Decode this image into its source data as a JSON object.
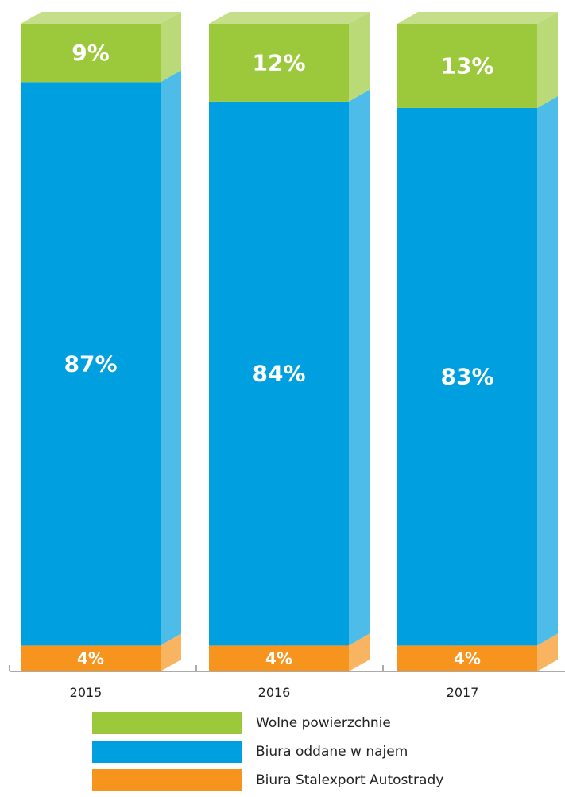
{
  "chart_data": {
    "type": "bar",
    "stacked": true,
    "style": "3d",
    "categories": [
      "2015",
      "2016",
      "2017"
    ],
    "series": [
      {
        "name": "Biura Stalexport Autostrady",
        "color": "#f7941d",
        "values": [
          4,
          4,
          4
        ],
        "labels": [
          "4%",
          "4%",
          "4%"
        ]
      },
      {
        "name": "Biura oddane w najem",
        "color": "#009fdf",
        "values": [
          87,
          84,
          83
        ],
        "labels": [
          "87%",
          "84%",
          "83%"
        ]
      },
      {
        "name": "Wolne powierzchnie",
        "color": "#9cc83c",
        "values": [
          9,
          12,
          13
        ],
        "labels": [
          "9%",
          "12%",
          "13%"
        ]
      }
    ],
    "ylim": [
      0,
      100
    ],
    "grid": false,
    "legend_position": "bottom"
  },
  "legend": [
    {
      "label": "Wolne powierzchnie",
      "color": "#9cc83c"
    },
    {
      "label": "Biura oddane w najem",
      "color": "#009fdf"
    },
    {
      "label": "Biura Stalexport Autostrady",
      "color": "#f7941d"
    }
  ]
}
